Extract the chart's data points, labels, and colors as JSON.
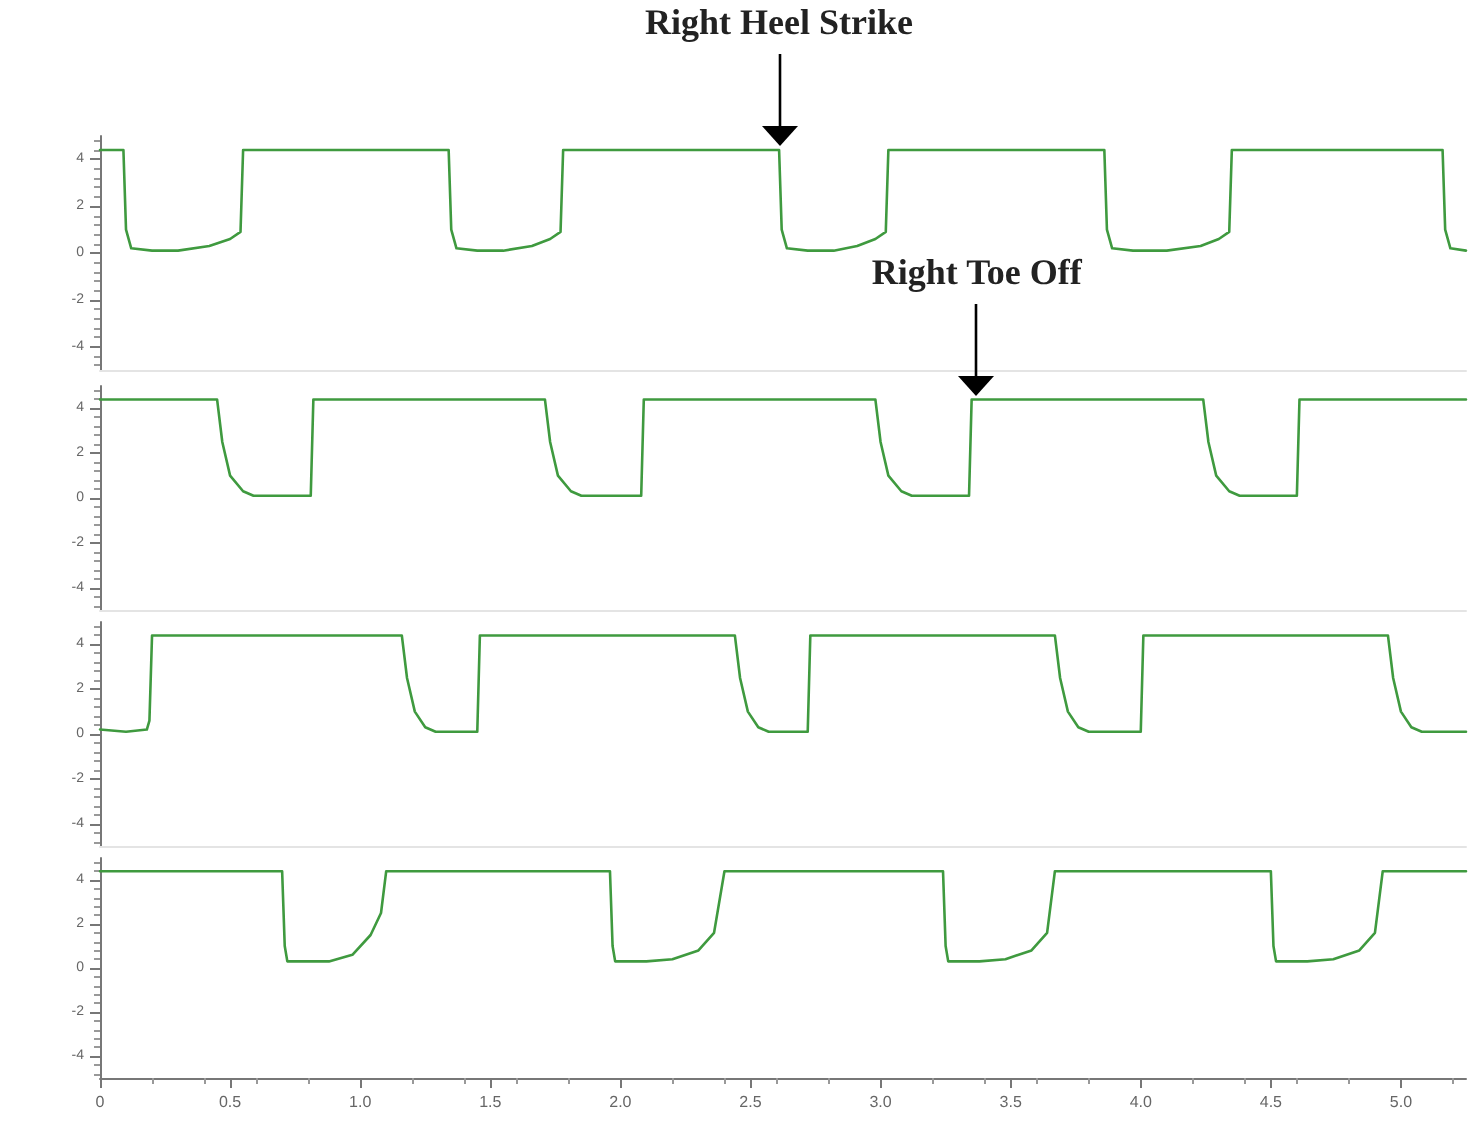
{
  "chart_data": [
    {
      "type": "line",
      "x": [
        0,
        0.09,
        0.1,
        0.12,
        0.2,
        0.3,
        0.42,
        0.5,
        0.54,
        0.55,
        1.34,
        1.35,
        1.37,
        1.45,
        1.55,
        1.66,
        1.73,
        1.77,
        1.78,
        2.61,
        2.62,
        2.64,
        2.72,
        2.82,
        2.91,
        2.98,
        3.02,
        3.03,
        3.86,
        3.87,
        3.89,
        3.97,
        4.1,
        4.23,
        4.3,
        4.34,
        4.35,
        5.16,
        5.17,
        5.19,
        5.25
      ],
      "series": [
        {
          "color": "#3f9a3f",
          "values": [
            4.4,
            4.4,
            1.0,
            0.2,
            0.1,
            0.1,
            0.3,
            0.6,
            0.9,
            4.4,
            4.4,
            1.0,
            0.2,
            0.1,
            0.1,
            0.3,
            0.6,
            0.9,
            4.4,
            4.4,
            1.0,
            0.2,
            0.1,
            0.1,
            0.3,
            0.6,
            0.9,
            4.4,
            4.4,
            1.0,
            0.2,
            0.1,
            0.1,
            0.3,
            0.6,
            0.9,
            4.4,
            4.4,
            1.0,
            0.2,
            0.1
          ]
        }
      ],
      "annotations": [
        {
          "text": "Right Heel Strike",
          "x": 2.61,
          "y": 4.4
        }
      ],
      "xlim": [
        0,
        5.25
      ],
      "ylim": [
        -5,
        5
      ],
      "yticks": [
        -4,
        -2,
        0,
        2,
        4
      ],
      "tick_labels": "y",
      "grid": false,
      "marker": "none",
      "line_style": "solid"
    },
    {
      "type": "line",
      "x": [
        0,
        0.45,
        0.47,
        0.5,
        0.55,
        0.59,
        0.81,
        0.82,
        1.71,
        1.73,
        1.76,
        1.81,
        1.85,
        2.08,
        2.09,
        2.98,
        3.0,
        3.03,
        3.08,
        3.12,
        3.34,
        3.35,
        4.24,
        4.26,
        4.29,
        4.34,
        4.38,
        4.6,
        4.61,
        5.25
      ],
      "series": [
        {
          "color": "#3f9a3f",
          "values": [
            4.4,
            4.4,
            2.5,
            1.0,
            0.3,
            0.1,
            0.1,
            4.4,
            4.4,
            2.5,
            1.0,
            0.3,
            0.1,
            0.1,
            4.4,
            4.4,
            2.5,
            1.0,
            0.3,
            0.1,
            0.1,
            4.4,
            4.4,
            2.5,
            1.0,
            0.3,
            0.1,
            0.1,
            4.4,
            4.4
          ]
        }
      ],
      "annotations": [
        {
          "text": "Right Toe Off",
          "x": 3.37,
          "y": 4.4
        }
      ],
      "xlim": [
        0,
        5.25
      ],
      "ylim": [
        -5,
        5
      ],
      "yticks": [
        -4,
        -2,
        0,
        2,
        4
      ],
      "tick_labels": "y",
      "grid": false,
      "marker": "none",
      "line_style": "solid"
    },
    {
      "type": "line",
      "x": [
        0,
        0.1,
        0.18,
        0.19,
        0.2,
        1.16,
        1.18,
        1.21,
        1.25,
        1.29,
        1.45,
        1.46,
        2.44,
        2.46,
        2.49,
        2.53,
        2.57,
        2.72,
        2.73,
        3.67,
        3.69,
        3.72,
        3.76,
        3.8,
        4.0,
        4.01,
        4.95,
        4.97,
        5.0,
        5.04,
        5.08,
        5.25
      ],
      "series": [
        {
          "color": "#3f9a3f",
          "values": [
            0.2,
            0.1,
            0.2,
            0.6,
            4.4,
            4.4,
            2.5,
            1.0,
            0.3,
            0.1,
            0.1,
            4.4,
            4.4,
            2.5,
            1.0,
            0.3,
            0.1,
            0.1,
            4.4,
            4.4,
            2.5,
            1.0,
            0.3,
            0.1,
            0.1,
            4.4,
            4.4,
            2.5,
            1.0,
            0.3,
            0.1,
            0.1
          ]
        }
      ],
      "xlim": [
        0,
        5.25
      ],
      "ylim": [
        -5,
        5
      ],
      "yticks": [
        -4,
        -2,
        0,
        2,
        4
      ],
      "tick_labels": "y",
      "grid": false,
      "marker": "none",
      "line_style": "solid"
    },
    {
      "type": "line",
      "x": [
        0,
        0.7,
        0.71,
        0.72,
        0.8,
        0.88,
        0.97,
        1.04,
        1.08,
        1.1,
        1.96,
        1.97,
        1.98,
        2.1,
        2.2,
        2.3,
        2.36,
        2.4,
        3.24,
        3.25,
        3.26,
        3.38,
        3.48,
        3.58,
        3.64,
        3.67,
        4.5,
        4.51,
        4.52,
        4.64,
        4.74,
        4.84,
        4.9,
        4.93,
        5.25
      ],
      "series": [
        {
          "color": "#3f9a3f",
          "values": [
            4.4,
            4.4,
            1.0,
            0.3,
            0.3,
            0.3,
            0.6,
            1.5,
            2.5,
            4.4,
            4.4,
            1.0,
            0.3,
            0.3,
            0.4,
            0.8,
            1.6,
            4.4,
            4.4,
            1.0,
            0.3,
            0.3,
            0.4,
            0.8,
            1.6,
            4.4,
            4.4,
            1.0,
            0.3,
            0.3,
            0.4,
            0.8,
            1.6,
            4.4,
            4.4
          ]
        }
      ],
      "xlim": [
        0,
        5.25
      ],
      "xticks": [
        0,
        0.5,
        {
          "value": 1,
          "label": "1.0"
        },
        1.5,
        {
          "value": 2,
          "label": "2.0"
        },
        2.5,
        {
          "value": 3,
          "label": "3.0"
        },
        3.5,
        {
          "value": 4,
          "label": "4.0"
        },
        4.5,
        {
          "value": 5,
          "label": "5.0"
        }
      ],
      "ylim": [
        -5,
        5
      ],
      "yticks": [
        -4,
        -2,
        0,
        2,
        4
      ],
      "grid": false,
      "marker": "none",
      "line_style": "solid"
    }
  ]
}
